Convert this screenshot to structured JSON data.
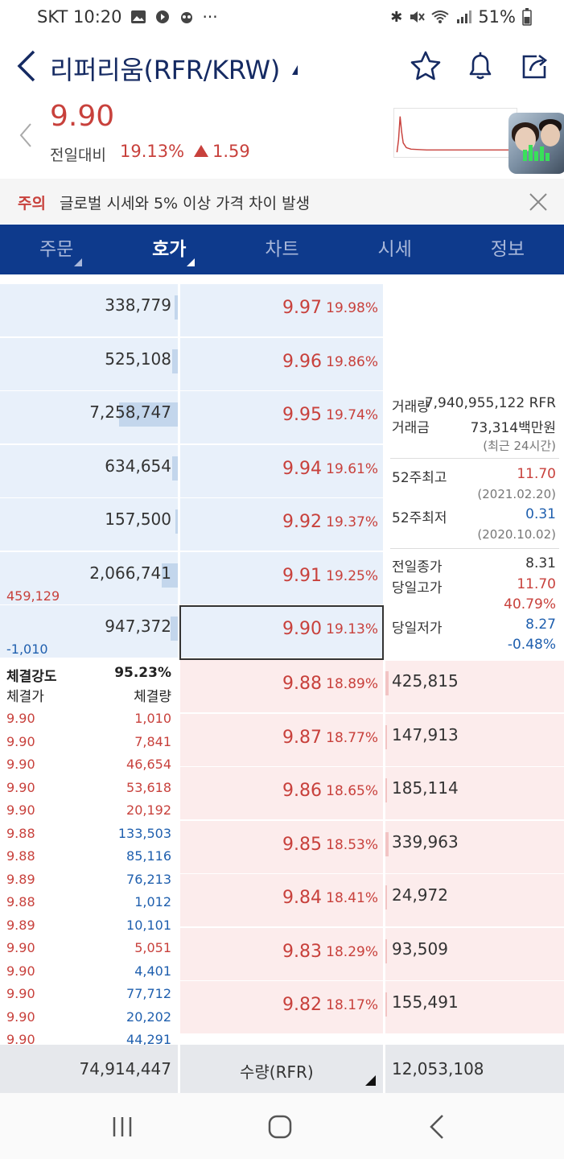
{
  "status": {
    "carrier_time": "SKT 10:20",
    "battery": "51%"
  },
  "header": {
    "title": "리퍼리움(RFR/KRW)"
  },
  "price": {
    "current": "9.90",
    "change_label": "전일대비",
    "change_pct": "19.13%",
    "change_abs": "1.59",
    "trend": "up"
  },
  "notice": {
    "tag": "주의",
    "text": "글로벌 시세와 5% 이상 가격 차이 발생"
  },
  "tabs": [
    {
      "label": "주문",
      "has_caret": true
    },
    {
      "label": "호가",
      "has_caret": true,
      "active": true
    },
    {
      "label": "차트"
    },
    {
      "label": "시세"
    },
    {
      "label": "정보"
    }
  ],
  "asks": [
    {
      "qty": "338,779",
      "price": "9.97",
      "pct": "19.98%",
      "level": 0.02
    },
    {
      "qty": "525,108",
      "price": "9.96",
      "pct": "19.86%",
      "level": 0.03
    },
    {
      "qty": "7,258,747",
      "price": "9.95",
      "pct": "19.74%",
      "level": 0.33
    },
    {
      "qty": "634,654",
      "price": "9.94",
      "pct": "19.61%",
      "level": 0.03
    },
    {
      "qty": "157,500",
      "price": "9.92",
      "pct": "19.37%",
      "level": 0.01
    },
    {
      "qty": "2,066,741",
      "price": "9.91",
      "pct": "19.25%",
      "level": 0.09,
      "note": "459,129",
      "note_color": "red"
    },
    {
      "qty": "947,372",
      "price": "9.90",
      "pct": "19.13%",
      "level": 0.04,
      "note": "-1,010",
      "note_color": "blue",
      "current": true
    }
  ],
  "bids": [
    {
      "qty": "425,815",
      "price": "9.88",
      "pct": "18.89%",
      "level": 0.02
    },
    {
      "qty": "147,913",
      "price": "9.87",
      "pct": "18.77%",
      "level": 0.01
    },
    {
      "qty": "185,114",
      "price": "9.86",
      "pct": "18.65%",
      "level": 0.01
    },
    {
      "qty": "339,963",
      "price": "9.85",
      "pct": "18.53%",
      "level": 0.02
    },
    {
      "qty": "24,972",
      "price": "9.84",
      "pct": "18.41%",
      "level": 0.0
    },
    {
      "qty": "93,509",
      "price": "9.83",
      "pct": "18.29%",
      "level": 0.0
    },
    {
      "qty": "155,491",
      "price": "9.82",
      "pct": "18.17%",
      "level": 0.01
    }
  ],
  "info": {
    "volume_label": "거래량",
    "volume_value": "7,940,955,122 RFR",
    "amount_label": "거래금",
    "amount_value": "73,314백만원",
    "period_note": "(최근 24시간)",
    "high52_label": "52주최고",
    "high52_value": "11.70",
    "high52_date": "(2021.02.20)",
    "low52_label": "52주최저",
    "low52_value": "0.31",
    "low52_date": "(2020.10.02)",
    "prev_close_label": "전일종가",
    "prev_close_value": "8.31",
    "day_high_label": "당일고가",
    "day_high_value": "11.70",
    "day_high_pct": "40.79%",
    "day_low_label": "당일저가",
    "day_low_value": "8.27",
    "day_low_pct": "-0.48%"
  },
  "trades": {
    "strength_label": "체결강도",
    "strength_value": "95.23%",
    "price_header": "체결가",
    "volume_header": "체결량",
    "rows": [
      {
        "price": "9.90",
        "volume": "1,010",
        "side": "buy"
      },
      {
        "price": "9.90",
        "volume": "7,841",
        "side": "buy"
      },
      {
        "price": "9.90",
        "volume": "46,654",
        "side": "buy"
      },
      {
        "price": "9.90",
        "volume": "53,618",
        "side": "buy"
      },
      {
        "price": "9.90",
        "volume": "20,192",
        "side": "buy"
      },
      {
        "price": "9.88",
        "volume": "133,503",
        "side": "sell"
      },
      {
        "price": "9.88",
        "volume": "85,116",
        "side": "sell"
      },
      {
        "price": "9.89",
        "volume": "76,213",
        "side": "sell"
      },
      {
        "price": "9.88",
        "volume": "1,012",
        "side": "sell"
      },
      {
        "price": "9.89",
        "volume": "10,101",
        "side": "sell"
      },
      {
        "price": "9.90",
        "volume": "5,051",
        "side": "buy"
      },
      {
        "price": "9.90",
        "volume": "4,401",
        "side": "sell"
      },
      {
        "price": "9.90",
        "volume": "77,712",
        "side": "sell"
      },
      {
        "price": "9.90",
        "volume": "20,202",
        "side": "sell"
      },
      {
        "price": "9.90",
        "volume": "44,291",
        "side": "sell"
      }
    ]
  },
  "footer": {
    "ask_total": "74,914,447",
    "unit_label": "수량(RFR)",
    "bid_total": "12,053,108"
  },
  "colors": {
    "up": "#c8413c",
    "down": "#1f5fae",
    "brand": "#0e3a8c",
    "title": "#152a62"
  },
  "icons": {
    "back": "back-icon",
    "favorite": "star-icon",
    "alert": "bell-icon",
    "share": "share-icon",
    "close": "close-icon",
    "nav_recent": "recent-apps-icon",
    "nav_home": "home-icon",
    "nav_back": "nav-back-icon"
  }
}
